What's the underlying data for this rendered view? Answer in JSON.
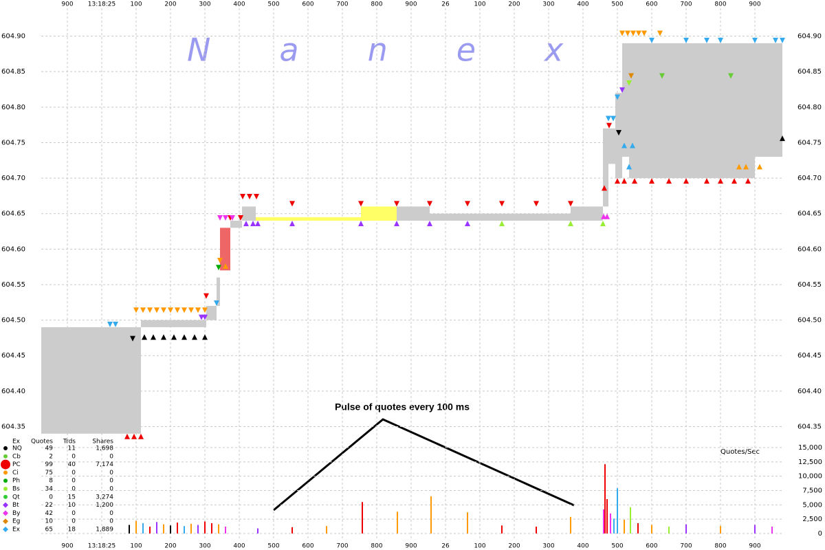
{
  "chart_data": {
    "type": "nbbo",
    "watermark": "Nanex",
    "annotation": "Pulse of quotes every 100 ms",
    "y2label": "Quotes/Sec",
    "grid": true,
    "xlim": [
      -176,
      1984
    ],
    "xticks": [
      {
        "value": -100,
        "label": "900"
      },
      {
        "value": 0,
        "label": "13:18:25"
      },
      {
        "value": 100,
        "label": "100"
      },
      {
        "value": 200,
        "label": "200"
      },
      {
        "value": 300,
        "label": "300"
      },
      {
        "value": 400,
        "label": "400"
      },
      {
        "value": 500,
        "label": "500"
      },
      {
        "value": 600,
        "label": "600"
      },
      {
        "value": 700,
        "label": "700"
      },
      {
        "value": 800,
        "label": "800"
      },
      {
        "value": 900,
        "label": "900"
      },
      {
        "value": 1000,
        "label": "26"
      },
      {
        "value": 1100,
        "label": "100"
      },
      {
        "value": 1200,
        "label": "200"
      },
      {
        "value": 1300,
        "label": "300"
      },
      {
        "value": 1400,
        "label": "400"
      },
      {
        "value": 1500,
        "label": "500"
      },
      {
        "value": 1600,
        "label": "600"
      },
      {
        "value": 1700,
        "label": "700"
      },
      {
        "value": 1800,
        "label": "800"
      },
      {
        "value": 1900,
        "label": "900"
      }
    ],
    "ylim": [
      604.334,
      604.917
    ],
    "yticks": [
      {
        "value": 604.9,
        "label": "604.90"
      },
      604.85,
      {
        "value": 604.8,
        "label": "604.80"
      },
      604.75,
      {
        "value": 604.7,
        "label": "604.70"
      },
      604.65,
      {
        "value": 604.6,
        "label": "604.60"
      },
      604.55,
      {
        "value": 604.5,
        "label": "604.50"
      },
      604.45,
      {
        "value": 604.4,
        "label": "604.40"
      },
      604.35
    ],
    "y2lim": [
      0,
      15000
    ],
    "y2ticks": [
      0,
      {
        "value": 2500,
        "label": "2,500"
      },
      {
        "value": 5000,
        "label": "5,000"
      },
      {
        "value": 7500,
        "label": "7,500"
      },
      {
        "value": 10000,
        "label": "10,000"
      },
      {
        "value": 12500,
        "label": "12,500"
      },
      {
        "value": 15000,
        "label": "15,000"
      }
    ],
    "nbbo": {
      "x": [
        -176,
        114,
        304,
        334,
        344,
        374,
        408,
        448,
        754,
        858,
        954,
        1364,
        1458,
        1474,
        1494,
        1514,
        1534,
        1900,
        1980
      ],
      "bid": [
        604.34,
        604.49,
        604.5,
        604.52,
        604.57,
        604.63,
        604.64,
        604.64,
        604.64,
        604.64,
        604.64,
        604.64,
        604.66,
        604.72,
        604.7,
        604.73,
        604.7,
        604.73
      ],
      "ask": [
        604.49,
        604.5,
        604.52,
        604.56,
        604.63,
        604.64,
        604.66,
        604.645,
        604.66,
        604.66,
        604.65,
        604.66,
        604.77,
        604.77,
        604.82,
        604.89,
        604.89,
        604.89
      ],
      "colors": [
        "#cccccc",
        "#cccccc",
        "#cccccc",
        "#cccccc",
        "#ee6666",
        "#cccccc",
        "#cccccc",
        "#ffff66",
        "#ffff66",
        "#cccccc",
        "#cccccc",
        "#cccccc",
        "#cccccc",
        "#cccccc",
        "#cccccc",
        "#cccccc",
        "#cccccc",
        "#cccccc"
      ]
    },
    "legend_columns": [
      "Ex",
      "Quotes",
      "Trds",
      "Shares"
    ],
    "series": [
      {
        "name": "NQ",
        "color": "#000000",
        "marker": "circle",
        "quotes": 49,
        "trades": 11,
        "shares": "1,698",
        "x": [
          90,
          124,
          150,
          180,
          210,
          240,
          270,
          300,
          1504,
          1980
        ],
        "values": [
          604.47,
          604.48,
          604.48,
          604.48,
          604.48,
          604.48,
          604.48,
          604.48,
          604.76,
          604.76
        ]
      },
      {
        "name": "Cb",
        "color": "#66cc33",
        "marker": "circle",
        "quotes": 2,
        "trades": 0,
        "shares": "0",
        "x": [
          1630,
          1830
        ],
        "values": [
          604.84,
          604.84
        ]
      },
      {
        "name": "PC",
        "color": "#ee0000",
        "marker": "big-circle",
        "quotes": 99,
        "trades": 40,
        "shares": "7,174",
        "x": [
          74,
          94,
          114,
          304,
          374,
          404,
          410,
          430,
          450,
          554,
          754,
          858,
          954,
          1064,
          1164,
          1264,
          1364,
          1462,
          1476,
          1500,
          1520,
          1550,
          1600,
          1650,
          1700,
          1760,
          1800,
          1840,
          1880
        ],
        "values": [
          604.34,
          604.34,
          604.34,
          604.53,
          604.64,
          604.64,
          604.67,
          604.67,
          604.67,
          604.66,
          604.66,
          604.66,
          604.66,
          604.66,
          604.66,
          604.66,
          604.66,
          604.69,
          604.77,
          604.7,
          604.7,
          604.7,
          604.7,
          604.7,
          604.7,
          604.7,
          604.7,
          604.7,
          604.7
        ]
      },
      {
        "name": "Ci",
        "color": "#ff9900",
        "marker": "circle",
        "quotes": 75,
        "trades": 0,
        "shares": "0",
        "x": [
          100,
          120,
          140,
          160,
          180,
          200,
          220,
          240,
          260,
          280,
          300,
          344,
          360,
          1514,
          1530,
          1546,
          1562,
          1578,
          1624,
          1854,
          1874,
          1914
        ],
        "values": [
          604.51,
          604.51,
          604.51,
          604.51,
          604.51,
          604.51,
          604.51,
          604.51,
          604.51,
          604.51,
          604.51,
          604.58,
          604.58,
          604.9,
          604.9,
          604.9,
          604.9,
          604.9,
          604.9,
          604.72,
          604.72,
          604.72
        ]
      },
      {
        "name": "Ph",
        "color": "#00aa00",
        "marker": "circle",
        "quotes": 8,
        "trades": 0,
        "shares": "0",
        "x": [
          340
        ],
        "values": [
          604.57
        ]
      },
      {
        "name": "Bs",
        "color": "#99ee33",
        "marker": "circle",
        "quotes": 34,
        "trades": 0,
        "shares": "0",
        "x": [
          1164,
          1364,
          1458,
          1534
        ],
        "values": [
          604.64,
          604.64,
          604.64,
          604.83
        ]
      },
      {
        "name": "Qt",
        "color": "#33cc33",
        "marker": "circle",
        "quotes": 0,
        "trades": 15,
        "shares": "3,274"
      },
      {
        "name": "Bt",
        "color": "#9933ff",
        "marker": "diamond",
        "quotes": 22,
        "trades": 10,
        "shares": "1,200",
        "x": [
          290,
          300,
          420,
          440,
          454,
          554,
          754,
          858,
          954,
          1064,
          1514
        ],
        "values": [
          604.5,
          604.5,
          604.64,
          604.64,
          604.64,
          604.64,
          604.64,
          604.64,
          604.64,
          604.64,
          604.82
        ]
      },
      {
        "name": "By",
        "color": "#ee33ee",
        "marker": "diamond",
        "quotes": 42,
        "trades": 0,
        "shares": "0",
        "x": [
          344,
          360,
          380,
          1460,
          1470
        ],
        "values": [
          604.64,
          604.64,
          604.64,
          604.65,
          604.65
        ]
      },
      {
        "name": "Eg",
        "color": "#dd8800",
        "marker": "diamond",
        "quotes": 10,
        "trades": 0,
        "shares": "0",
        "x": [
          1540
        ],
        "values": [
          604.84
        ]
      },
      {
        "name": "Ex",
        "color": "#33aaee",
        "marker": "diamond",
        "quotes": 65,
        "trades": 18,
        "shares": "1,889",
        "x": [
          24,
          40,
          334,
          1474,
          1488,
          1500,
          1520,
          1534,
          1544,
          1600,
          1700,
          1760,
          1800,
          1900,
          1960,
          1980
        ],
        "values": [
          604.49,
          604.49,
          604.52,
          604.78,
          604.78,
          604.81,
          604.75,
          604.72,
          604.75,
          604.89,
          604.89,
          604.89,
          604.89,
          604.89,
          604.89,
          604.89
        ]
      }
    ],
    "rate": {
      "x": [
        80,
        100,
        120,
        140,
        160,
        180,
        200,
        220,
        240,
        260,
        280,
        300,
        320,
        340,
        360,
        454,
        554,
        654,
        758,
        860,
        958,
        1064,
        1164,
        1264,
        1364,
        1460,
        1464,
        1470,
        1480,
        1490,
        1500,
        1520,
        1538,
        1560,
        1600,
        1650,
        1700,
        1800,
        1900,
        1950
      ],
      "values": [
        1500,
        2200,
        1800,
        1200,
        2000,
        1600,
        1400,
        1900,
        1300,
        1700,
        1500,
        2100,
        1800,
        1600,
        1200,
        900,
        1100,
        1300,
        5500,
        3800,
        6500,
        3700,
        1400,
        1200,
        2900,
        4200,
        12100,
        6000,
        3500,
        2600,
        7900,
        2400,
        4600,
        1800,
        1500,
        1200,
        1600,
        1300,
        1500,
        1200
      ],
      "colors": [
        "#000000",
        "#ff9900",
        "#33aaee",
        "#ee0000",
        "#9933ff",
        "#ff9900",
        "#000000",
        "#ee0000",
        "#33aaee",
        "#ff9900",
        "#9933ff",
        "#ee0000",
        "#ee0000",
        "#ff9900",
        "#ee33ee",
        "#9933ff",
        "#ee0000",
        "#ff9900",
        "#ee0000",
        "#ff9900",
        "#ff9900",
        "#ff9900",
        "#ee0000",
        "#ee0000",
        "#ff9900",
        "#ee33ee",
        "#ee0000",
        "#ee0000",
        "#ee33ee",
        "#33aaee",
        "#33aaee",
        "#ff9900",
        "#99ee33",
        "#ee0000",
        "#ff9900",
        "#99ee33",
        "#9933ff",
        "#ff9900",
        "#9933ff",
        "#ee33ee"
      ]
    }
  }
}
